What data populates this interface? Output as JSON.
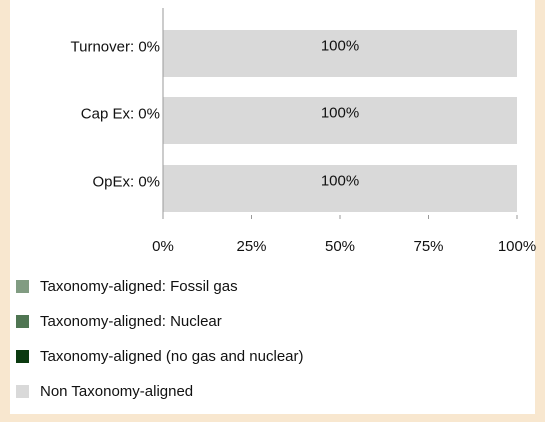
{
  "chart_data": {
    "type": "stacked-bar-horizontal",
    "categories": [
      "Turnover: 0%",
      "Cap Ex: 0%",
      "OpEx: 0%"
    ],
    "series": [
      {
        "name": "Taxonomy-aligned: Fossil gas",
        "color": "#819c82",
        "values": [
          0,
          0,
          0
        ]
      },
      {
        "name": "Taxonomy-aligned: Nuclear",
        "color": "#4f7552",
        "values": [
          0,
          0,
          0
        ]
      },
      {
        "name": "Taxonomy-aligned (no gas and nuclear)",
        "color": "#0b3a10",
        "values": [
          0,
          0,
          0
        ]
      },
      {
        "name": "Non Taxonomy-aligned",
        "color": "#d9d9d9",
        "values": [
          100,
          100,
          100
        ],
        "value_labels": [
          "100%",
          "100%",
          "100%"
        ]
      }
    ],
    "xlim": [
      0,
      100
    ],
    "xticks": [
      {
        "value": 0,
        "label": "0%"
      },
      {
        "value": 25,
        "label": "25%"
      },
      {
        "value": 50,
        "label": "50%"
      },
      {
        "value": 75,
        "label": "75%"
      },
      {
        "value": 100,
        "label": "100%"
      }
    ]
  }
}
